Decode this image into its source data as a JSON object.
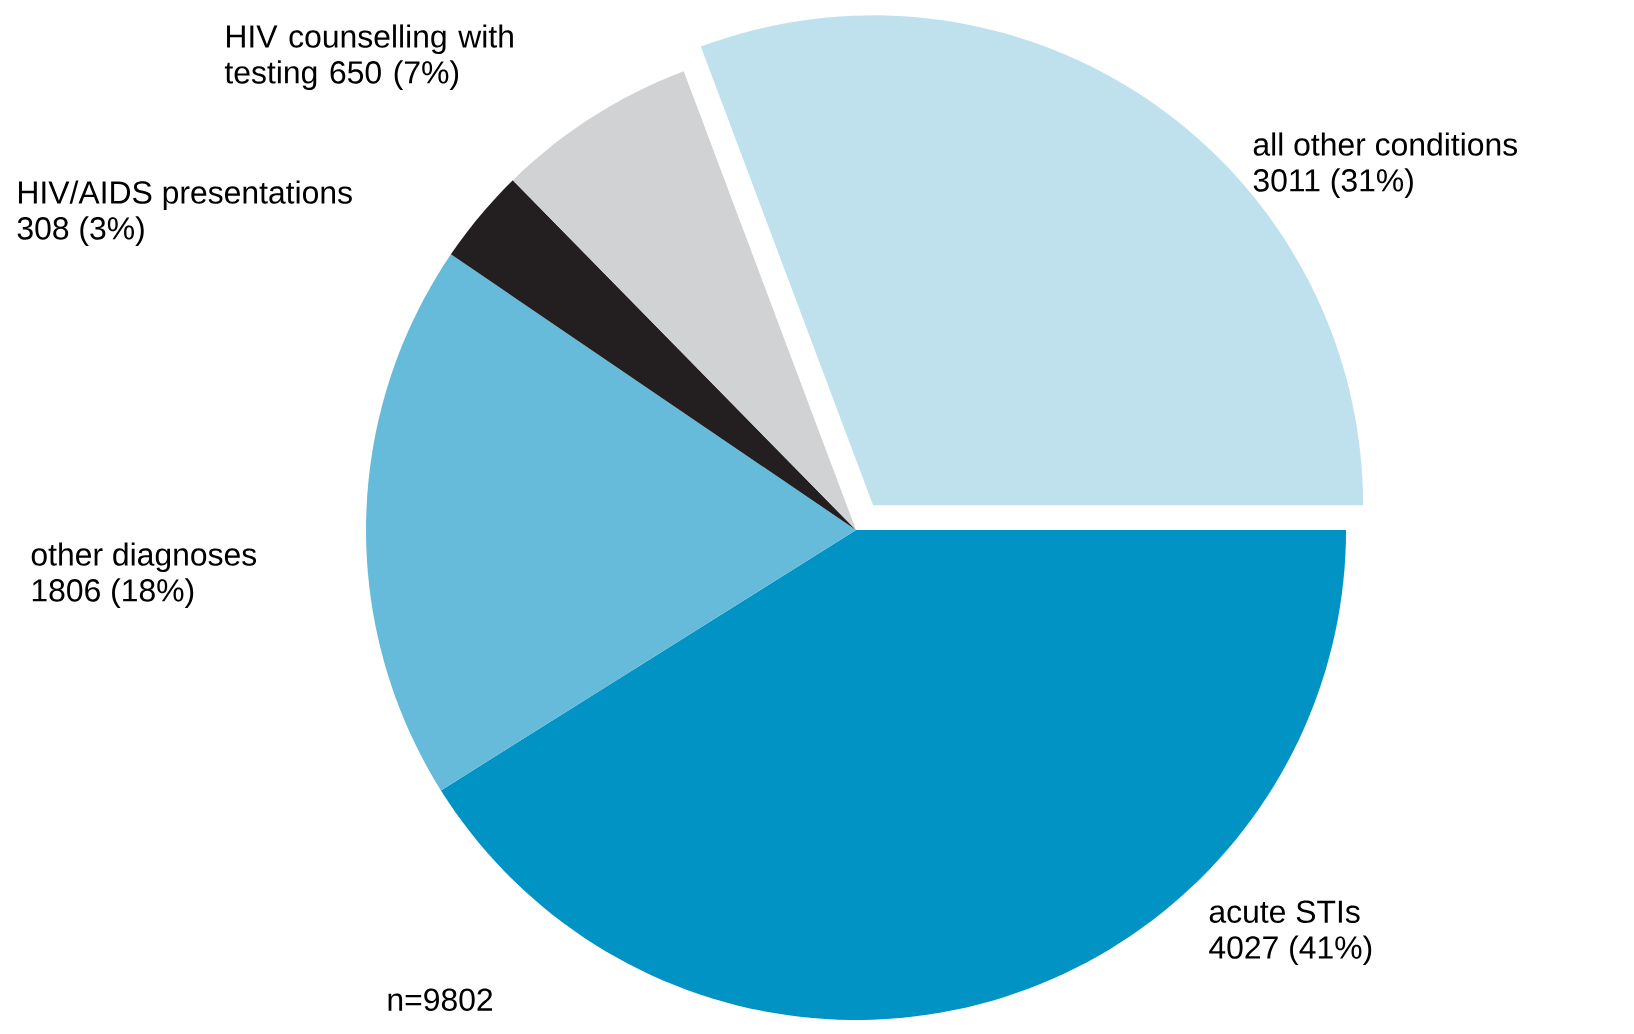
{
  "chart_data": {
    "type": "pie",
    "categories": [
      "all other conditions",
      "acute STIs",
      "other diagnoses",
      "HIV/AIDS presentations",
      "HIV counselling with testing"
    ],
    "values": [
      3011,
      4027,
      1806,
      308,
      650
    ],
    "value_labels": [
      "3011 (31%)",
      "4027 (41%)",
      "1806 (18%)",
      "308 (3%)",
      "650 (7%)"
    ],
    "colors": [
      "#bfe1ee",
      "#0093c4",
      "#66bbda",
      "#231f20",
      "#d1d2d4"
    ],
    "annotations": [
      "n=9802"
    ]
  }
}
